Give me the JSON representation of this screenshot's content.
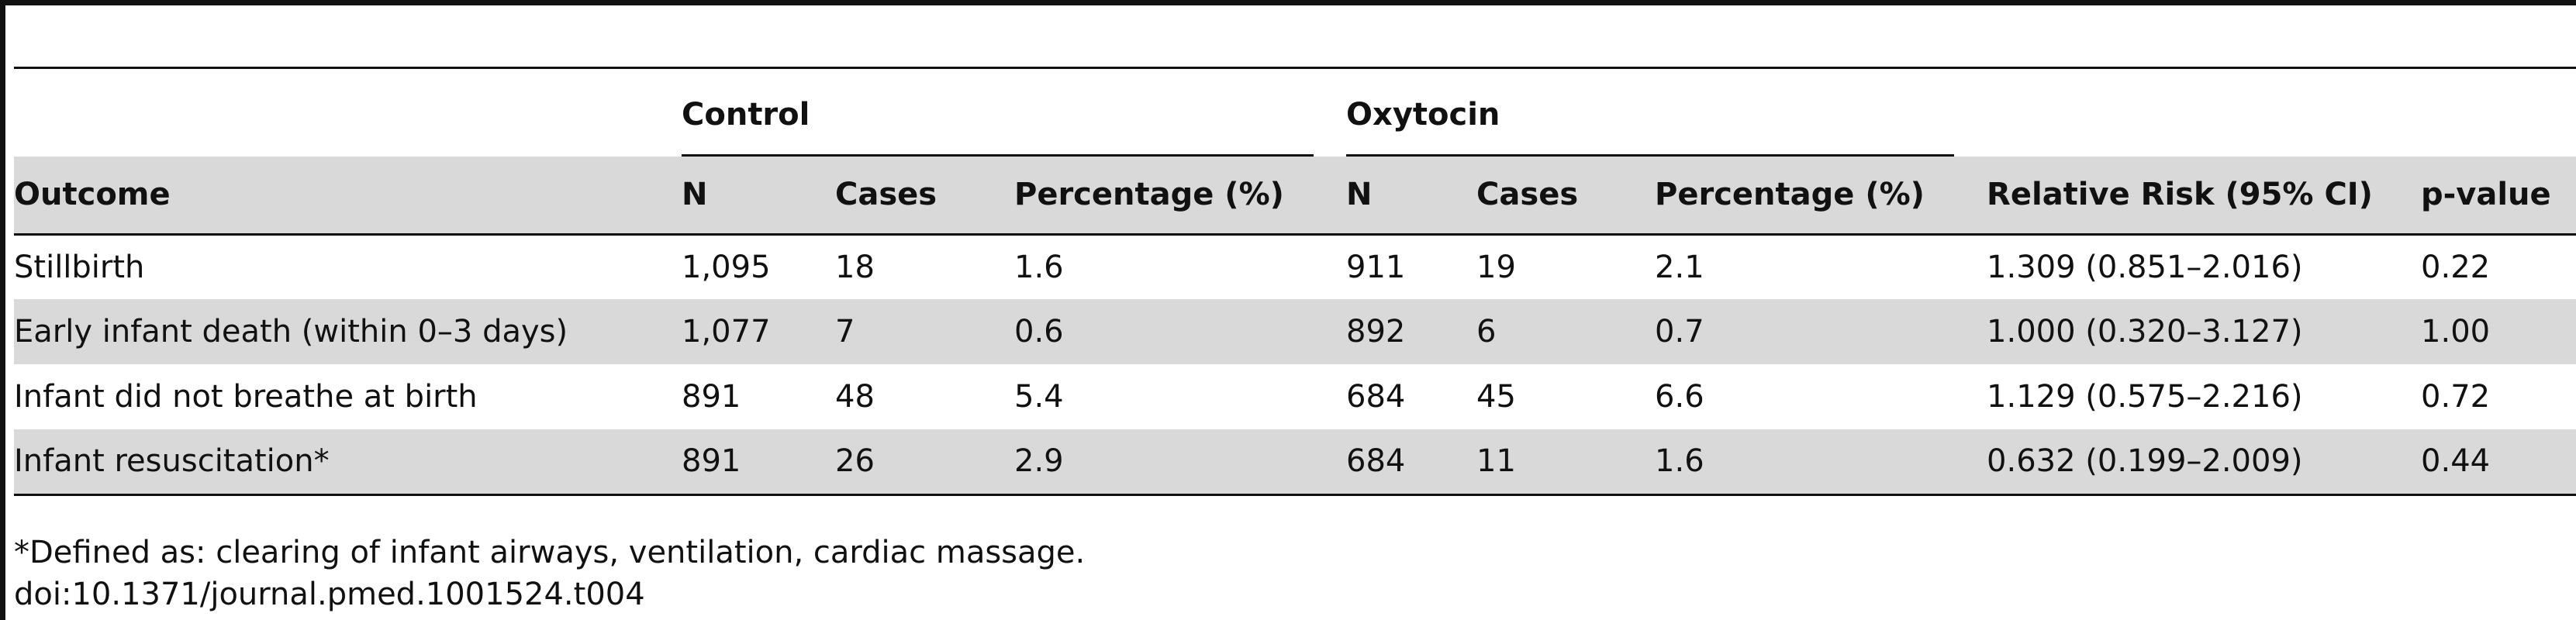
{
  "table": {
    "groups": {
      "control": "Control",
      "oxytocin": "Oxytocin"
    },
    "columns": [
      "Outcome",
      "N",
      "Cases",
      "Percentage (%)",
      "N",
      "Cases",
      "Percentage (%)",
      "Relative Risk (95% CI)",
      "p-value"
    ],
    "rows": [
      [
        "Stillbirth",
        "1,095",
        "18",
        "1.6",
        "911",
        "19",
        "2.1",
        "1.309 (0.851–2.016)",
        "0.22"
      ],
      [
        "Early infant death (within 0–3 days)",
        "1,077",
        "7",
        "0.6",
        "892",
        "6",
        "0.7",
        "1.000 (0.320–3.127)",
        "1.00"
      ],
      [
        "Infant did not breathe at birth",
        "891",
        "48",
        "5.4",
        "684",
        "45",
        "6.6",
        "1.129 (0.575–2.216)",
        "0.72"
      ],
      [
        "Infant resuscitation*",
        "891",
        "26",
        "2.9",
        "684",
        "11",
        "1.6",
        "0.632 (0.199–2.009)",
        "0.44"
      ]
    ]
  },
  "footnote": "*Defined as: clearing of infant airways, ventilation, cardiac massage.",
  "doi": "doi:10.1371/journal.pmed.1001524.t004"
}
